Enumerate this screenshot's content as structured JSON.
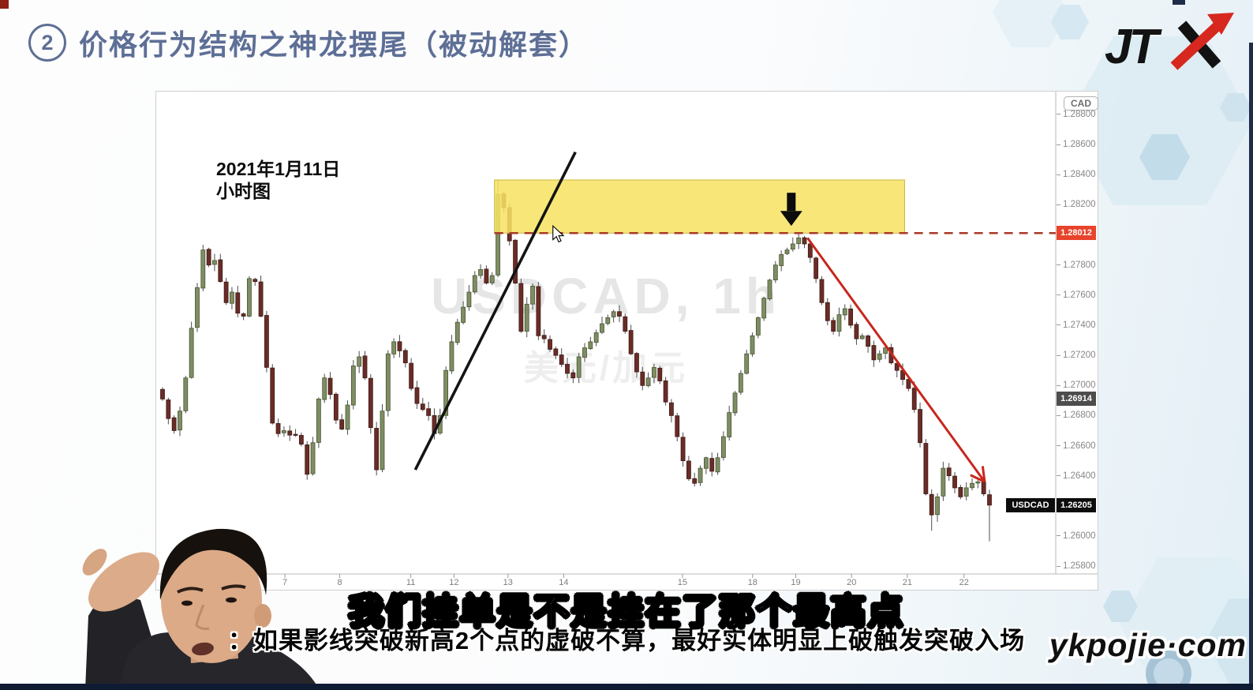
{
  "page": {
    "slide_number": "2",
    "title": "价格行为结构之神龙摆尾（被动解套）",
    "logo_text": "JTX",
    "site_watermark": "ykpojie·com"
  },
  "subtitles": {
    "line1": "我们挂单是不是挂在了那个最高点",
    "line2": "：如果影线突破新高2个点的虚破不算，最好实体明显上破触发突破入场"
  },
  "chart_data": {
    "type": "candlestick",
    "symbol": "USDCAD",
    "timeframe": "1h",
    "watermark_line1": "USDCAD, 1h",
    "watermark_line2": "美元/加元",
    "annotation_date": "2021年1月11日",
    "annotation_timeframe": "小时图",
    "currency_badge": "CAD",
    "y_axis": {
      "min": 1.25748,
      "max": 1.28952,
      "ticks": [
        1.288,
        1.286,
        1.284,
        1.282,
        1.278,
        1.276,
        1.274,
        1.272,
        1.27,
        1.268,
        1.266,
        1.264,
        1.26,
        1.258
      ]
    },
    "x_axis": {
      "labels": [
        "7",
        "8",
        "11",
        "12",
        "13",
        "14",
        "15",
        "18",
        "19",
        "20",
        "21",
        "22"
      ],
      "positions": [
        0.143,
        0.204,
        0.283,
        0.331,
        0.391,
        0.453,
        0.585,
        0.663,
        0.711,
        0.773,
        0.835,
        0.898
      ]
    },
    "price_path": [
      1.2691,
      1.2678,
      1.267,
      1.2683,
      1.2705,
      1.2738,
      1.2765,
      1.279,
      1.278,
      1.2783,
      1.2769,
      1.2755,
      1.2762,
      1.2748,
      1.2746,
      1.2771,
      1.2769,
      1.2746,
      1.2712,
      1.2675,
      1.2668,
      1.267,
      1.2667,
      1.2667,
      1.2661,
      1.2641,
      1.2662,
      1.2691,
      1.2705,
      1.2694,
      1.2677,
      1.2671,
      1.2687,
      1.2713,
      1.2719,
      1.2705,
      1.2672,
      1.2644,
      1.2683,
      1.2721,
      1.2729,
      1.2723,
      1.2715,
      1.2698,
      1.2688,
      1.2684,
      1.268,
      1.2668,
      1.268,
      1.271,
      1.2729,
      1.2742,
      1.2752,
      1.2762,
      1.2773,
      1.2777,
      1.2768,
      1.2773,
      1.2827,
      1.2818,
      1.2796,
      1.2768,
      1.2736,
      1.2754,
      1.2766,
      1.2733,
      1.2731,
      1.2724,
      1.272,
      1.2714,
      1.2708,
      1.2705,
      1.2719,
      1.2725,
      1.2729,
      1.2735,
      1.2741,
      1.2745,
      1.2749,
      1.2746,
      1.2736,
      1.2721,
      1.2709,
      1.27,
      1.2705,
      1.2712,
      1.2703,
      1.2689,
      1.268,
      1.2666,
      1.265,
      1.2638,
      1.2635,
      1.2645,
      1.2652,
      1.2643,
      1.2652,
      1.2666,
      1.2682,
      1.2695,
      1.2708,
      1.2721,
      1.2733,
      1.2745,
      1.2758,
      1.277,
      1.278,
      1.2787,
      1.279,
      1.2794,
      1.2798,
      1.2794,
      1.2785,
      1.2771,
      1.2755,
      1.2743,
      1.2736,
      1.2747,
      1.2751,
      1.274,
      1.2731,
      1.2733,
      1.2726,
      1.2717,
      1.2721,
      1.2725,
      1.2715,
      1.271,
      1.2704,
      1.2698,
      1.2684,
      1.2662,
      1.2628,
      1.2614,
      1.2626,
      1.2645,
      1.264,
      1.2632,
      1.2626,
      1.2632,
      1.2635,
      1.2636,
      1.2628,
      1.26205
    ],
    "wick_overrides": [
      {
        "index": 58,
        "high": 1.28365
      },
      {
        "index": 110,
        "high": 1.28015
      },
      {
        "index": 133,
        "low": 1.26035
      },
      {
        "index": 143,
        "low": 1.25965
      }
    ],
    "key_levels": {
      "breakout_level": 1.28012,
      "mid_level": 1.26914,
      "last_price": 1.26205
    },
    "tags": {
      "level_value": "1.28012",
      "mid_value": "1.26914",
      "last_symbol": "USDCAD",
      "last_value": "1.26205"
    },
    "zone": {
      "x_start_frac": 0.376,
      "x_end_frac": 0.832,
      "price_top": 1.28365,
      "price_bottom": 1.28012
    },
    "trendline": {
      "x1_frac": 0.288,
      "price1": 1.2644,
      "x2_frac": 0.466,
      "price2": 1.2855
    },
    "red_arrow": {
      "x1_frac": 0.724,
      "price1": 1.2798,
      "x2_frac": 0.921,
      "price2": 1.2636
    },
    "down_arrow": {
      "x_frac": 0.706,
      "price_top": 1.2828,
      "price_tip": 1.2806
    },
    "cursor": {
      "x_frac": 0.441,
      "price": 1.2806
    },
    "colors": {
      "up": "#7f8d64",
      "up_border": "#45562f",
      "down": "#6a2c27",
      "down_border": "#401b16",
      "wick": "#4d4d4d",
      "zone_fill": "#f7e464",
      "zone_border": "#c8b845",
      "dashed_line": "#a83a26",
      "level_tag_bg": "#e8432b",
      "mid_tag_bg": "#4d4d4d",
      "last_tag_bg": "#0d0d0d",
      "axis_line": "#b8b8b8"
    }
  }
}
